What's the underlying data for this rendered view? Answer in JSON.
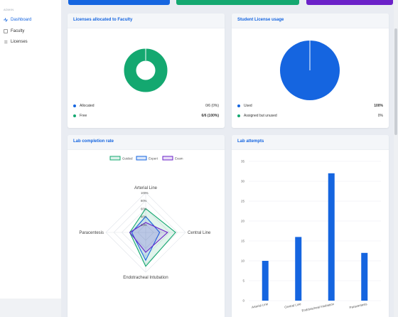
{
  "sidebar": {
    "section_label": "ADMIN",
    "items": [
      {
        "label": "Dashboard",
        "icon": "activity-icon",
        "active": true
      },
      {
        "label": "Faculty",
        "icon": "square-icon",
        "active": false
      },
      {
        "label": "Licenses",
        "icon": "list-icon",
        "active": false
      }
    ]
  },
  "colors": {
    "blue": "#1565e0",
    "green": "#14a870",
    "purple": "#6b21c8",
    "grid": "#e6e9ee"
  },
  "faculty_card": {
    "title": "Licenses allocated to Faculty",
    "legend": [
      {
        "label": "Allocated",
        "value": "0/6 (0%)",
        "color": "#1565e0"
      },
      {
        "label": "Free",
        "value": "6/6 (100%)",
        "color": "#14a870"
      }
    ]
  },
  "student_card": {
    "title": "Student License usage",
    "legend": [
      {
        "label": "Used",
        "value": "100%",
        "color": "#1565e0"
      },
      {
        "label": "Assigned but unused",
        "value": "0%",
        "color": "#14a870"
      }
    ]
  },
  "radar_card": {
    "title": "Lab completion rate"
  },
  "bar_card": {
    "title": "Lab attempts"
  },
  "chart_data": [
    {
      "type": "pie",
      "variant": "doughnut",
      "labels": [
        "Allocated",
        "Free"
      ],
      "values": [
        0,
        6
      ]
    },
    {
      "type": "pie",
      "labels": [
        "Used",
        "Assigned but unused"
      ],
      "values": [
        100,
        0
      ]
    },
    {
      "type": "radar",
      "axes": [
        "Arterial Line",
        "Central Line",
        "Endotracheal Intubation",
        "Paracentesis"
      ],
      "tick_labels": [
        "20%",
        "40%",
        "60%",
        "80%",
        "100%"
      ],
      "range": [
        0,
        100
      ],
      "series": [
        {
          "name": "Guided",
          "color": "#14a870",
          "values": [
            60,
            75,
            85,
            40
          ]
        },
        {
          "name": "Expert",
          "color": "#1565e0",
          "values": [
            40,
            35,
            70,
            35
          ]
        },
        {
          "name": "Exam",
          "color": "#6b21c8",
          "values": [
            25,
            55,
            50,
            40
          ]
        }
      ],
      "legend": "top"
    },
    {
      "type": "bar",
      "categories": [
        "Arterial Line",
        "Central Line",
        "Endotracheal Intubation",
        "Paracentesis"
      ],
      "values": [
        10,
        16,
        32,
        12
      ],
      "yticks": [
        0,
        5,
        10,
        15,
        20,
        25,
        30,
        35
      ],
      "ylim": [
        0,
        35
      ],
      "grid": true
    }
  ]
}
